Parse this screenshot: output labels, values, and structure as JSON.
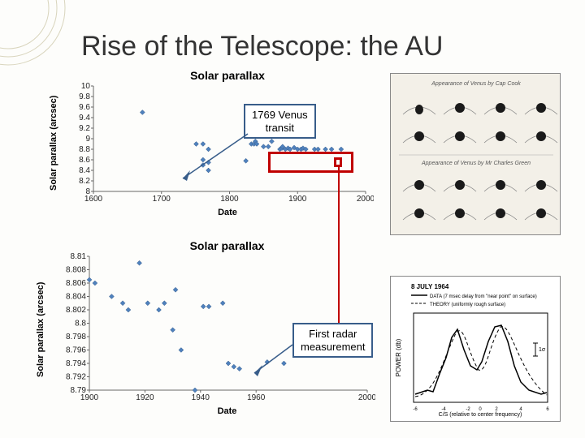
{
  "title": "Rise of the Telescope: the AU",
  "chart1": {
    "type": "scatter",
    "title": "Solar parallax",
    "xlabel": "Date",
    "ylabel": "Solar parallax (arcsec)",
    "xlim": [
      1600,
      2000
    ],
    "ylim": [
      8,
      10
    ],
    "xticks": [
      1600,
      1700,
      1800,
      1900,
      2000
    ],
    "yticks": [
      8,
      8.2,
      8.4,
      8.6,
      8.8,
      9,
      9.2,
      9.4,
      9.6,
      9.8,
      10
    ],
    "points": [
      [
        1672,
        9.5
      ],
      [
        1751,
        8.9
      ],
      [
        1761,
        8.9
      ],
      [
        1761,
        8.6
      ],
      [
        1761,
        8.5
      ],
      [
        1769,
        8.8
      ],
      [
        1769,
        8.55
      ],
      [
        1769,
        8.4
      ],
      [
        1824,
        8.58
      ],
      [
        1832,
        8.9
      ],
      [
        1836,
        8.9
      ],
      [
        1838,
        8.95
      ],
      [
        1840,
        8.9
      ],
      [
        1850,
        8.85
      ],
      [
        1857,
        8.85
      ],
      [
        1862,
        8.95
      ],
      [
        1874,
        8.8
      ],
      [
        1877,
        8.82
      ],
      [
        1878,
        8.85
      ],
      [
        1882,
        8.8
      ],
      [
        1886,
        8.82
      ],
      [
        1889,
        8.8
      ],
      [
        1895,
        8.83
      ],
      [
        1900,
        8.8
      ],
      [
        1905,
        8.8
      ],
      [
        1908,
        8.82
      ],
      [
        1912,
        8.8
      ],
      [
        1925,
        8.8
      ],
      [
        1930,
        8.8
      ],
      [
        1941,
        8.8
      ],
      [
        1950,
        8.8
      ],
      [
        1964,
        8.8
      ]
    ],
    "marker_color": "#4f81bd",
    "marker_stroke": "#385d8a",
    "marker_size": 3,
    "bg": "#ffffff",
    "border": "#666666"
  },
  "callout1": {
    "text_l1": "1769 Venus",
    "text_l2": "transit"
  },
  "chart2": {
    "type": "scatter",
    "title": "Solar parallax",
    "xlabel": "Date",
    "ylabel": "Solar parallax (arcsec)",
    "xlim": [
      1900,
      2000
    ],
    "ylim": [
      8.79,
      8.81
    ],
    "xticks": [
      1900,
      1920,
      1940,
      1960,
      2000
    ],
    "yticks": [
      8.79,
      8.792,
      8.794,
      8.796,
      8.798,
      8.8,
      8.802,
      8.804,
      8.806,
      8.808,
      8.81
    ],
    "points": [
      [
        1900,
        8.8065
      ],
      [
        1902,
        8.806
      ],
      [
        1908,
        8.804
      ],
      [
        1912,
        8.803
      ],
      [
        1914,
        8.802
      ],
      [
        1918,
        8.809
      ],
      [
        1921,
        8.803
      ],
      [
        1925,
        8.802
      ],
      [
        1927,
        8.803
      ],
      [
        1930,
        8.799
      ],
      [
        1931,
        8.805
      ],
      [
        1933,
        8.796
      ],
      [
        1938,
        8.79
      ],
      [
        1941,
        8.8025
      ],
      [
        1943,
        8.8025
      ],
      [
        1948,
        8.803
      ],
      [
        1950,
        8.794
      ],
      [
        1952,
        8.7935
      ],
      [
        1954,
        8.7932
      ],
      [
        1964,
        8.7942
      ],
      [
        1970,
        8.794
      ]
    ],
    "marker_color": "#4f81bd",
    "marker_stroke": "#385d8a",
    "marker_size": 3,
    "bg": "#ffffff",
    "border": "#666666"
  },
  "callout2": {
    "text_l1": "First radar",
    "text_l2": "measurement"
  },
  "side_fig1": {
    "label_a": "Appearance of Venus by Cap Cook",
    "label_b": "Appearance of Venus by Mr Charles Green"
  },
  "side_fig2": {
    "date": "8 JULY 1964",
    "legend1": "DATA (7 msec delay from \"near point\" on surface)",
    "legend2": "THEORY (uniformly rough surface)",
    "ylabel": "POWER (db)",
    "xlabel": "C/S (relative to center frequency)"
  },
  "colors": {
    "callout_border": "#385d8a",
    "red_box": "#c00000",
    "deco_ring": "#d8d4bc",
    "title_color": "#333333"
  }
}
